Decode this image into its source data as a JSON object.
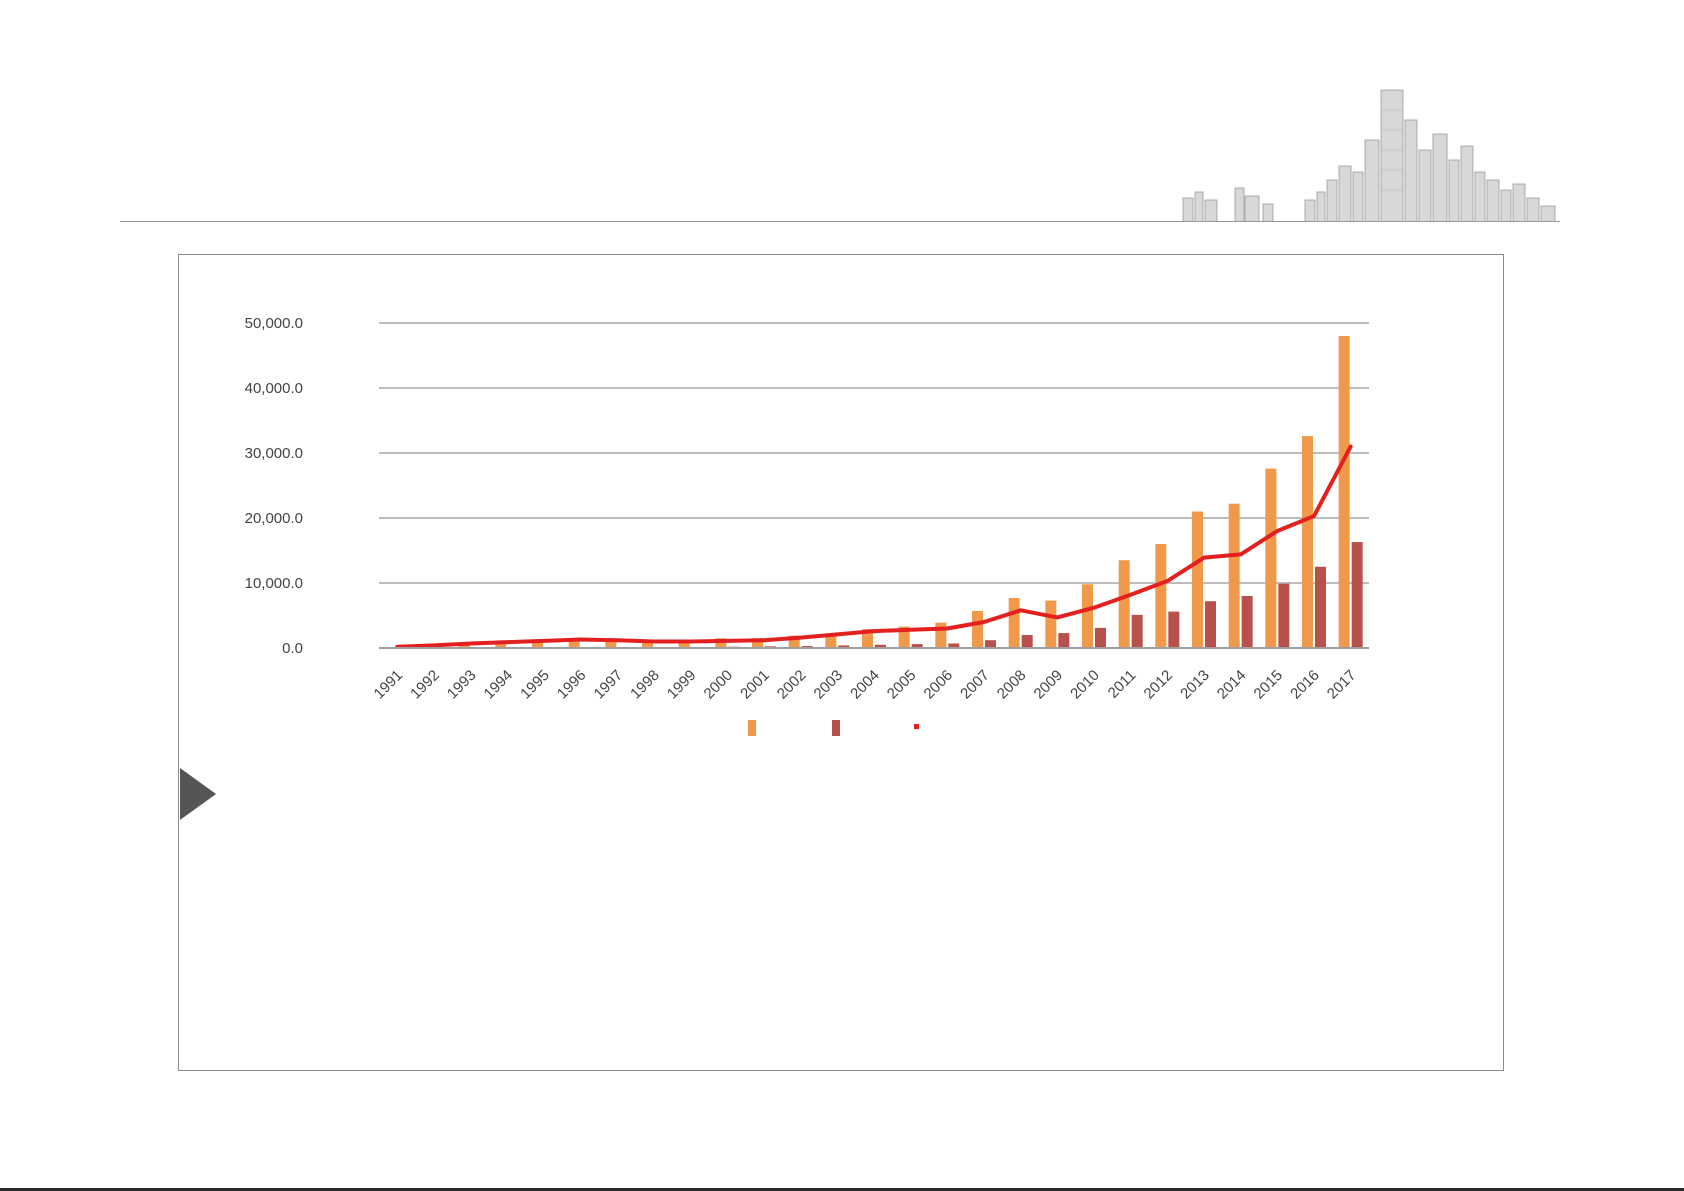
{
  "colors": {
    "bar_series_1": "#f0994a",
    "bar_series_2": "#b8504d",
    "line_series": "#e41f1f",
    "grid": "#bdbdbd",
    "frame_border": "#8a8a8a",
    "arrow": "#555555"
  },
  "icons": {
    "pointer": "play-triangle-icon",
    "decoration": "city-skyline-icon"
  },
  "chart_data": {
    "type": "bar",
    "title": "",
    "xlabel": "",
    "ylabel": "",
    "ylim": [
      0,
      50000
    ],
    "y_ticks": [
      "0.0",
      "10,000.0",
      "20,000.0",
      "30,000.0",
      "40,000.0",
      "50,000.0"
    ],
    "grid": true,
    "legend_position": "bottom",
    "categories": [
      "1991",
      "1992",
      "1993",
      "1994",
      "1995",
      "1996",
      "1997",
      "1998",
      "1999",
      "2000",
      "2001",
      "2002",
      "2003",
      "2004",
      "2005",
      "2006",
      "2007",
      "2008",
      "2009",
      "2010",
      "2011",
      "2012",
      "2013",
      "2014",
      "2015",
      "2016",
      "2017"
    ],
    "series": [
      {
        "kind": "bar",
        "values": [
          100,
          300,
          600,
          900,
          1100,
          1300,
          1300,
          1200,
          1300,
          1500,
          1500,
          1900,
          2200,
          2900,
          3300,
          3900,
          5700,
          7700,
          7300,
          9800,
          13500,
          16000,
          21000,
          22200,
          27600,
          32600,
          48000
        ]
      },
      {
        "kind": "bar",
        "values": [
          20,
          40,
          60,
          80,
          100,
          120,
          130,
          120,
          150,
          200,
          250,
          300,
          400,
          500,
          600,
          700,
          1200,
          2000,
          2300,
          3100,
          5100,
          5600,
          7200,
          8000,
          9900,
          12500,
          16300
        ]
      },
      {
        "kind": "line",
        "values": [
          200,
          400,
          700,
          900,
          1100,
          1300,
          1200,
          1000,
          1000,
          1100,
          1200,
          1600,
          2100,
          2600,
          2800,
          3000,
          4000,
          5800,
          4700,
          6200,
          8200,
          10300,
          13900,
          14400,
          18000,
          20300,
          31000
        ]
      }
    ]
  }
}
